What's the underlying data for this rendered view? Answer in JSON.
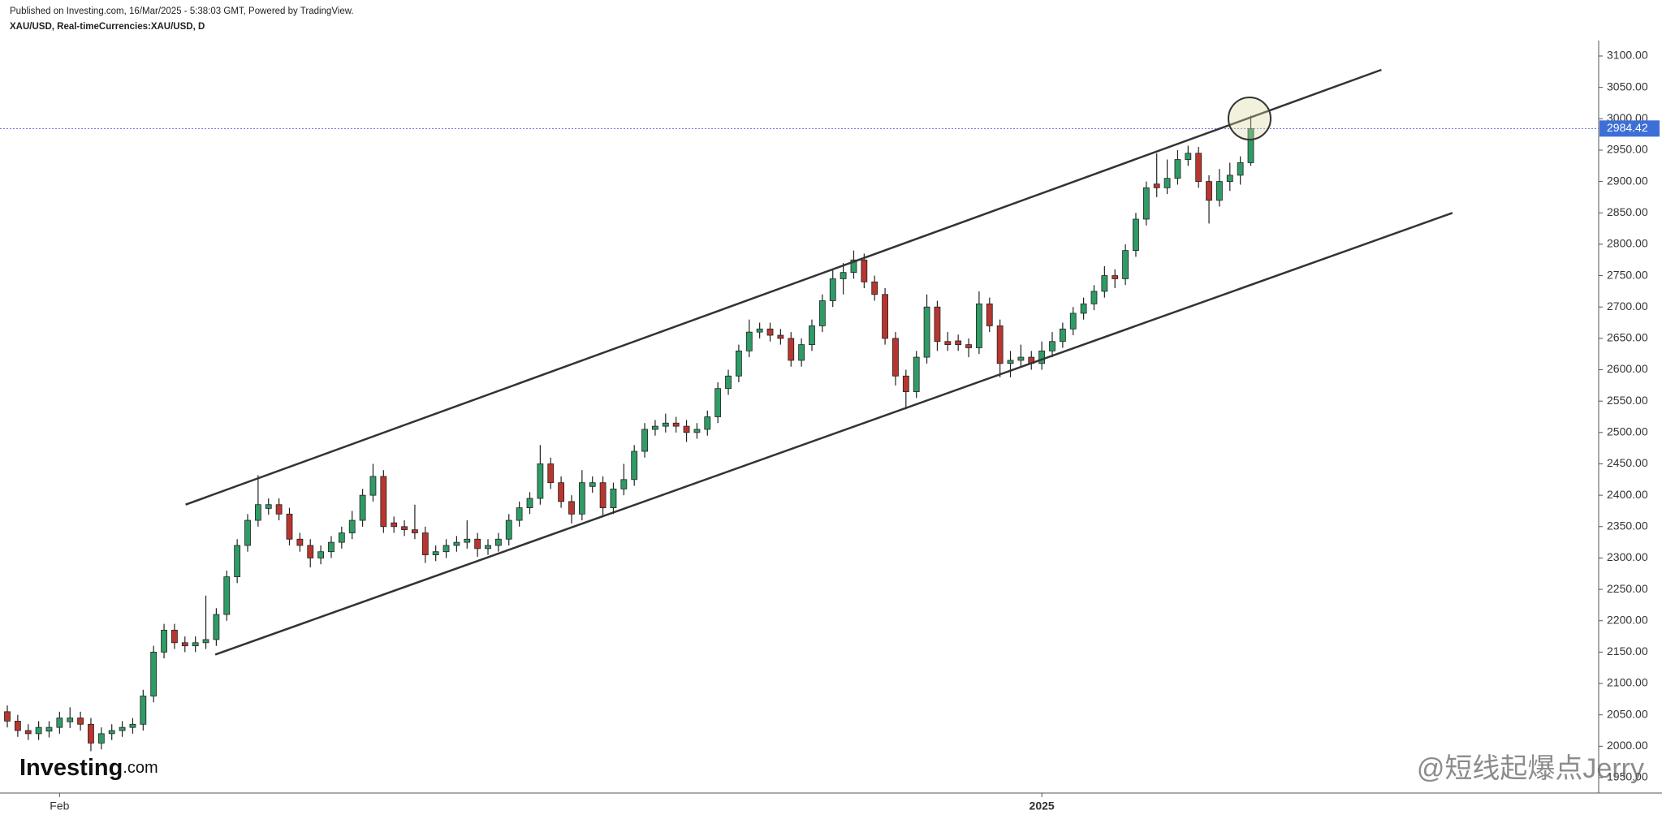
{
  "chart_data": {
    "type": "candlestick",
    "published": "Published on Investing.com, 16/Mar/2025 - 5:38:03 GMT, Powered by TradingView.",
    "title": "XAU/USD, Real-timeCurrencies:XAU/USD, D",
    "logo_text": "Investing",
    "logo_suffix": ".com",
    "watermark": "@短线起爆点Jerry",
    "up_color": "#2f9b66",
    "down_color": "#b8362f",
    "last": 2984.42,
    "ylim": [
      1950,
      3100
    ],
    "yticks": [
      {
        "value": 1950,
        "label": "1950.00"
      },
      {
        "value": 2000,
        "label": "2000.00"
      },
      {
        "value": 2050,
        "label": "2050.00"
      },
      {
        "value": 2100,
        "label": "2100.00"
      },
      {
        "value": 2150,
        "label": "2150.00"
      },
      {
        "value": 2200,
        "label": "2200.00"
      },
      {
        "value": 2250,
        "label": "2250.00"
      },
      {
        "value": 2300,
        "label": "2300.00"
      },
      {
        "value": 2350,
        "label": "2350.00"
      },
      {
        "value": 2400,
        "label": "2400.00"
      },
      {
        "value": 2450,
        "label": "2450.00"
      },
      {
        "value": 2500,
        "label": "2500.00"
      },
      {
        "value": 2550,
        "label": "2550.00"
      },
      {
        "value": 2600,
        "label": "2600.00"
      },
      {
        "value": 2650,
        "label": "2650.00"
      },
      {
        "value": 2700,
        "label": "2700.00"
      },
      {
        "value": 2750,
        "label": "2750.00"
      },
      {
        "value": 2800,
        "label": "2800.00"
      },
      {
        "value": 2850,
        "label": "2850.00"
      },
      {
        "value": 2900,
        "label": "2900.00"
      },
      {
        "value": 2950,
        "label": "2950.00"
      },
      {
        "value": 3000,
        "label": "3000.00"
      },
      {
        "value": 3050,
        "label": "3050.00"
      },
      {
        "value": 3100,
        "label": "3100.00"
      }
    ],
    "trendlines": [
      {
        "x": [
          17.06,
          131.5
        ],
        "y": [
          2385,
          3078
        ]
      },
      {
        "x": [
          19.9,
          138.3
        ],
        "y": [
          2146,
          2850
        ]
      }
    ],
    "categories": [
      null,
      null,
      null,
      null,
      null,
      "Feb",
      null,
      null,
      null,
      null,
      null,
      null,
      null,
      null,
      null,
      null,
      null,
      null,
      null,
      null,
      null,
      null,
      null,
      null,
      null,
      null,
      null,
      null,
      null,
      null,
      null,
      null,
      null,
      null,
      null,
      null,
      null,
      null,
      null,
      null,
      null,
      null,
      null,
      null,
      null,
      null,
      null,
      null,
      null,
      null,
      null,
      null,
      null,
      null,
      null,
      null,
      null,
      null,
      null,
      null,
      null,
      null,
      null,
      null,
      null,
      null,
      null,
      null,
      null,
      null,
      null,
      null,
      null,
      null,
      null,
      null,
      null,
      null,
      null,
      null,
      null,
      null,
      null,
      null,
      null,
      null,
      null,
      null,
      null,
      null,
      null,
      null,
      null,
      null,
      null,
      null,
      null,
      null,
      null,
      "2025",
      null,
      null,
      null,
      null,
      null,
      null,
      null,
      null,
      null,
      null,
      null,
      null,
      null,
      null,
      null,
      null,
      null,
      null,
      null,
      null
    ],
    "open": [
      2055,
      2040,
      2025,
      2020,
      2024,
      2030,
      2039,
      2045,
      2035,
      2005,
      2020,
      2025,
      2030,
      2035,
      2080,
      2150,
      2185,
      2165,
      2160,
      2165,
      2170,
      2210,
      2270,
      2320,
      2360,
      2379,
      2385,
      2370,
      2330,
      2320,
      2300,
      2310,
      2325,
      2340,
      2360,
      2400,
      2430,
      2356,
      2350,
      2345,
      2340,
      2305,
      2310,
      2320,
      2325,
      2330,
      2315,
      2320,
      2330,
      2360,
      2380,
      2395,
      2450,
      2420,
      2390,
      2370,
      2414,
      2420,
      2380,
      2410,
      2425,
      2470,
      2505,
      2510,
      2515,
      2510,
      2500,
      2505,
      2525,
      2570,
      2590,
      2630,
      2660,
      2665,
      2655,
      2650,
      2615,
      2640,
      2670,
      2710,
      2745,
      2755,
      2775,
      2740,
      2720,
      2650,
      2590,
      2565,
      2620,
      2700,
      2645,
      2646,
      2640,
      2635,
      2705,
      2670,
      2610,
      2615,
      2620,
      2610,
      2630,
      2645,
      2665,
      2690,
      2705,
      2725,
      2750,
      2745,
      2790,
      2840,
      2896,
      2890,
      2905,
      2935,
      2945,
      2900,
      2870,
      2900,
      2910,
      2930
    ],
    "high": [
      2065,
      2050,
      2035,
      2040,
      2040,
      2055,
      2062,
      2055,
      2045,
      2030,
      2035,
      2040,
      2045,
      2090,
      2160,
      2195,
      2195,
      2175,
      2175,
      2240,
      2220,
      2280,
      2330,
      2370,
      2432,
      2395,
      2395,
      2380,
      2340,
      2330,
      2320,
      2335,
      2350,
      2375,
      2410,
      2450,
      2440,
      2366,
      2360,
      2385,
      2350,
      2320,
      2330,
      2335,
      2360,
      2340,
      2330,
      2340,
      2370,
      2390,
      2405,
      2480,
      2460,
      2430,
      2400,
      2440,
      2430,
      2430,
      2420,
      2450,
      2480,
      2515,
      2520,
      2530,
      2525,
      2520,
      2515,
      2535,
      2580,
      2600,
      2640,
      2680,
      2675,
      2675,
      2665,
      2660,
      2650,
      2680,
      2720,
      2760,
      2770,
      2790,
      2785,
      2750,
      2730,
      2660,
      2600,
      2630,
      2720,
      2710,
      2660,
      2656,
      2650,
      2725,
      2715,
      2680,
      2630,
      2640,
      2630,
      2645,
      2660,
      2675,
      2700,
      2715,
      2735,
      2765,
      2760,
      2800,
      2850,
      2900,
      2945,
      2935,
      2950,
      2957,
      2955,
      2910,
      2920,
      2930,
      2940,
      3005
    ],
    "low": [
      2030,
      2015,
      2010,
      2010,
      2014,
      2020,
      2029,
      2025,
      1992,
      1995,
      2010,
      2015,
      2020,
      2025,
      2070,
      2140,
      2155,
      2150,
      2150,
      2155,
      2160,
      2200,
      2260,
      2310,
      2350,
      2369,
      2360,
      2320,
      2310,
      2285,
      2290,
      2300,
      2315,
      2330,
      2350,
      2390,
      2340,
      2340,
      2335,
      2330,
      2292,
      2295,
      2300,
      2310,
      2315,
      2302,
      2305,
      2310,
      2320,
      2350,
      2370,
      2385,
      2410,
      2380,
      2355,
      2360,
      2404,
      2365,
      2370,
      2400,
      2415,
      2460,
      2495,
      2500,
      2500,
      2485,
      2490,
      2495,
      2515,
      2560,
      2580,
      2620,
      2650,
      2645,
      2640,
      2605,
      2605,
      2630,
      2660,
      2700,
      2720,
      2745,
      2730,
      2710,
      2640,
      2575,
      2537,
      2555,
      2610,
      2630,
      2630,
      2630,
      2620,
      2625,
      2660,
      2588,
      2588,
      2605,
      2600,
      2600,
      2620,
      2635,
      2655,
      2680,
      2695,
      2715,
      2730,
      2735,
      2780,
      2830,
      2875,
      2880,
      2895,
      2925,
      2890,
      2833,
      2860,
      2885,
      2895,
      2925
    ],
    "close": [
      2040,
      2025,
      2020,
      2030,
      2030,
      2045,
      2045,
      2035,
      2005,
      2020,
      2025,
      2030,
      2035,
      2080,
      2150,
      2185,
      2165,
      2160,
      2165,
      2170,
      2210,
      2270,
      2320,
      2360,
      2385,
      2385,
      2370,
      2330,
      2320,
      2300,
      2310,
      2325,
      2340,
      2360,
      2400,
      2430,
      2350,
      2350,
      2345,
      2340,
      2305,
      2310,
      2320,
      2325,
      2330,
      2315,
      2320,
      2330,
      2360,
      2380,
      2395,
      2450,
      2420,
      2390,
      2370,
      2420,
      2420,
      2380,
      2410,
      2425,
      2470,
      2505,
      2510,
      2515,
      2510,
      2500,
      2505,
      2525,
      2570,
      2590,
      2630,
      2660,
      2665,
      2655,
      2650,
      2615,
      2640,
      2670,
      2710,
      2745,
      2755,
      2775,
      2740,
      2720,
      2650,
      2590,
      2565,
      2620,
      2700,
      2645,
      2640,
      2640,
      2635,
      2705,
      2670,
      2610,
      2615,
      2620,
      2610,
      2630,
      2645,
      2665,
      2690,
      2705,
      2725,
      2750,
      2745,
      2790,
      2840,
      2890,
      2890,
      2905,
      2935,
      2945,
      2900,
      2870,
      2900,
      2910,
      2930,
      2984
    ]
  }
}
